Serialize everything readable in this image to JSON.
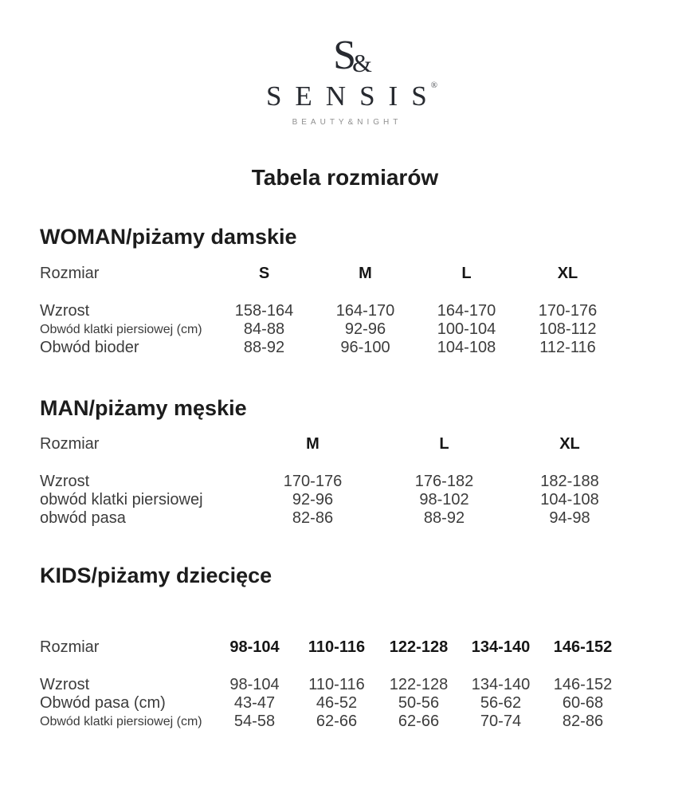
{
  "colors": {
    "text": "#3c3c3c",
    "heading_text": "#1c1c1c",
    "tagline_text": "#8f8f8f",
    "background": "#ffffff"
  },
  "logo": {
    "monogram_s": "S",
    "monogram_amp": "&",
    "brand": "SENSIS",
    "registered": "®",
    "tagline": "BEAUTY&NIGHT"
  },
  "title": "Tabela rozmiarów",
  "sections": [
    {
      "key": "woman",
      "heading": "WOMAN/piżamy damskie",
      "header": {
        "label": "Rozmiar",
        "columns": [
          "S",
          "M",
          "L",
          "XL"
        ]
      },
      "rows": [
        {
          "label": "Wzrost",
          "small": false,
          "values": [
            "158-164",
            "164-170",
            "164-170",
            "170-176"
          ]
        },
        {
          "label": "Obwód klatki piersiowej (cm)",
          "small": true,
          "values": [
            "84-88",
            "92-96",
            "100-104",
            "108-112"
          ]
        },
        {
          "label": "Obwód bioder",
          "small": false,
          "values": [
            "88-92",
            "96-100",
            "104-108",
            "112-116"
          ]
        }
      ]
    },
    {
      "key": "man",
      "heading": "MAN/piżamy męskie",
      "header": {
        "label": "Rozmiar",
        "columns": [
          "M",
          "L",
          "XL"
        ]
      },
      "rows": [
        {
          "label": "Wzrost",
          "small": false,
          "values": [
            "170-176",
            "176-182",
            "182-188"
          ]
        },
        {
          "label": "obwód klatki piersiowej",
          "small": false,
          "values": [
            "92-96",
            "98-102",
            "104-108"
          ]
        },
        {
          "label": "obwód pasa",
          "small": false,
          "values": [
            "82-86",
            "88-92",
            "94-98"
          ]
        }
      ]
    },
    {
      "key": "kids",
      "heading": "KIDS/piżamy dziecięce",
      "header": {
        "label": "Rozmiar",
        "columns": [
          "98-104",
          "110-116",
          "122-128",
          "134-140",
          "146-152"
        ]
      },
      "rows": [
        {
          "label": "Wzrost",
          "small": false,
          "values": [
            "98-104",
            "110-116",
            "122-128",
            "134-140",
            "146-152"
          ]
        },
        {
          "label": "Obwód pasa (cm)",
          "small": false,
          "values": [
            "43-47",
            "46-52",
            "50-56",
            "56-62",
            "60-68"
          ]
        },
        {
          "label": "Obwód klatki piersiowej (cm)",
          "small": true,
          "values": [
            "54-58",
            "62-66",
            "62-66",
            "70-74",
            "82-86"
          ]
        }
      ]
    }
  ]
}
